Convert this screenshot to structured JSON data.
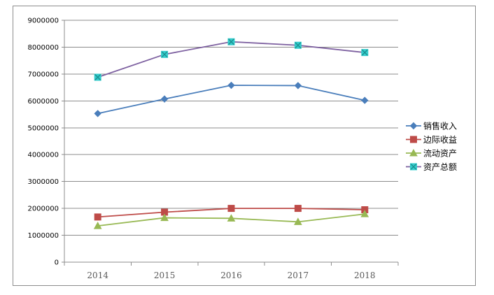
{
  "chart_data": {
    "type": "line",
    "title": "",
    "xlabel": "",
    "ylabel": "",
    "x": [
      "2014",
      "2015",
      "2016",
      "2017",
      "2018"
    ],
    "ylim": [
      0,
      9000000
    ],
    "yticks": [
      "0",
      "1000000",
      "2000000",
      "3000000",
      "4000000",
      "5000000",
      "6000000",
      "7000000",
      "8000000",
      "9000000"
    ],
    "grid": true,
    "legend_position": "right",
    "series": [
      {
        "name": "销售收入",
        "values": [
          5530000,
          6070000,
          6580000,
          6570000,
          6020000
        ],
        "color": "#4A7EBB",
        "marker": "diamond"
      },
      {
        "name": "边际收益",
        "values": [
          1680000,
          1860000,
          2000000,
          2000000,
          1950000
        ],
        "color": "#BE4B48",
        "marker": "square"
      },
      {
        "name": "流动资产",
        "values": [
          1350000,
          1650000,
          1630000,
          1500000,
          1790000
        ],
        "color": "#98B954",
        "marker": "triangle"
      },
      {
        "name": "资产总额",
        "values": [
          6880000,
          7730000,
          8200000,
          8070000,
          7800000
        ],
        "color": "#7D60A0",
        "marker_color": "#33CCCC",
        "marker": "x-square"
      }
    ]
  }
}
